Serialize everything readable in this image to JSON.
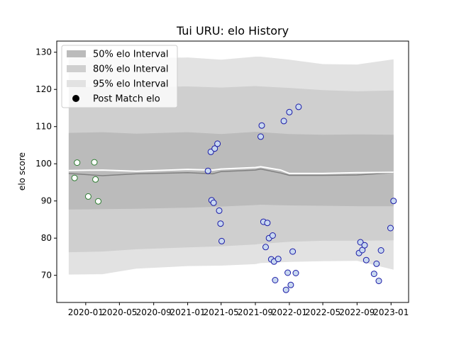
{
  "chart_data": {
    "type": "scatter",
    "title": "Tui URU: elo History",
    "xlabel": "",
    "ylabel": "elo score",
    "xlim": [
      "2019-09-19",
      "2023-03-05"
    ],
    "ylim": [
      62.7,
      133.0
    ],
    "yticks": [
      70,
      80,
      90,
      100,
      110,
      120,
      130
    ],
    "xticks": [
      "2020-01",
      "2020-05",
      "2020-09",
      "2021-01",
      "2021-05",
      "2021-09",
      "2022-01",
      "2022-05",
      "2022-09",
      "2023-01"
    ],
    "grid": false,
    "legend": {
      "position": "top-left",
      "entries": [
        "50% elo Interval",
        "80% elo Interval",
        "95% elo Interval",
        "Post Match elo"
      ]
    },
    "colors": {
      "band95": "#e2e2e2",
      "band80": "#cfcfcf",
      "band50": "#bbbbbb",
      "median_line": "#ffffff",
      "mean_line": "#808080",
      "marker_edge_green": "#2e7d32",
      "marker_edge_blue": "#1a1aa6",
      "marker_fill_blue": "#c8d8f0",
      "marker_fill_green": "#ffffff"
    },
    "bands": {
      "dates": [
        "2019-11-01",
        "2020-03-01",
        "2020-07-01",
        "2021-01-01",
        "2021-05-01",
        "2021-09-01",
        "2021-09-20",
        "2022-01-01",
        "2022-05-01",
        "2022-09-01",
        "2023-01-10"
      ],
      "p95_low": [
        70.2,
        70.3,
        71.8,
        72.5,
        72.6,
        73.0,
        73.3,
        73.6,
        73.8,
        73.9,
        71.5
      ],
      "p95_high": [
        128.5,
        128.8,
        128.3,
        128.6,
        128.0,
        128.8,
        128.8,
        128.0,
        126.8,
        126.7,
        128.1
      ],
      "p80_low": [
        76.2,
        76.4,
        77.0,
        77.5,
        77.8,
        78.3,
        78.5,
        79.0,
        79.3,
        79.3,
        79.4
      ],
      "p80_high": [
        120.5,
        120.7,
        120.6,
        120.8,
        120.5,
        120.9,
        120.8,
        120.4,
        119.8,
        119.5,
        119.7
      ],
      "p50_low": [
        87.7,
        87.8,
        87.9,
        88.2,
        88.5,
        88.9,
        89.0,
        88.8,
        88.7,
        88.6,
        88.6
      ],
      "p50_high": [
        108.3,
        108.5,
        108.1,
        108.5,
        108.0,
        108.6,
        108.5,
        108.0,
        107.8,
        107.9,
        107.8
      ]
    },
    "lines": {
      "median": {
        "dates": [
          "2019-11-01",
          "2020-03-01",
          "2020-07-01",
          "2021-01-01",
          "2021-04-01",
          "2021-05-01",
          "2021-09-01",
          "2021-09-20",
          "2021-12-01",
          "2022-01-01",
          "2022-05-01",
          "2022-09-01",
          "2023-01-10"
        ],
        "values": [
          98.2,
          98.3,
          98.0,
          98.5,
          98.3,
          98.6,
          99.0,
          99.2,
          98.3,
          97.4,
          97.4,
          97.6,
          97.7
        ]
      },
      "mean": {
        "dates": [
          "2019-11-01",
          "2020-03-01",
          "2020-07-01",
          "2021-01-01",
          "2021-04-01",
          "2021-05-01",
          "2021-09-01",
          "2021-09-20",
          "2021-12-01",
          "2022-01-01",
          "2022-05-01",
          "2022-09-01",
          "2023-01-10"
        ],
        "values": [
          97.4,
          96.8,
          97.3,
          97.6,
          97.3,
          97.9,
          98.3,
          98.6,
          97.5,
          96.9,
          96.9,
          97.0,
          97.6
        ]
      }
    },
    "points": [
      {
        "date": "2019-11-22",
        "elo": 96.2,
        "group": "green"
      },
      {
        "date": "2019-12-01",
        "elo": 100.3,
        "group": "green"
      },
      {
        "date": "2020-01-10",
        "elo": 91.2,
        "group": "green"
      },
      {
        "date": "2020-02-01",
        "elo": 100.4,
        "group": "green"
      },
      {
        "date": "2020-02-05",
        "elo": 95.8,
        "group": "green"
      },
      {
        "date": "2020-02-15",
        "elo": 89.9,
        "group": "green"
      },
      {
        "date": "2021-03-15",
        "elo": 98.1,
        "group": "blue"
      },
      {
        "date": "2021-03-25",
        "elo": 103.2,
        "group": "blue"
      },
      {
        "date": "2021-03-28",
        "elo": 90.2,
        "group": "blue"
      },
      {
        "date": "2021-04-04",
        "elo": 89.5,
        "group": "blue"
      },
      {
        "date": "2021-04-08",
        "elo": 104.1,
        "group": "blue"
      },
      {
        "date": "2021-04-18",
        "elo": 105.4,
        "group": "blue"
      },
      {
        "date": "2021-04-24",
        "elo": 87.4,
        "group": "blue"
      },
      {
        "date": "2021-04-29",
        "elo": 83.9,
        "group": "blue"
      },
      {
        "date": "2021-05-03",
        "elo": 79.2,
        "group": "blue"
      },
      {
        "date": "2021-09-20",
        "elo": 107.3,
        "group": "blue"
      },
      {
        "date": "2021-09-24",
        "elo": 110.3,
        "group": "blue"
      },
      {
        "date": "2021-09-30",
        "elo": 84.4,
        "group": "blue"
      },
      {
        "date": "2021-10-08",
        "elo": 77.6,
        "group": "blue"
      },
      {
        "date": "2021-10-14",
        "elo": 84.1,
        "group": "blue"
      },
      {
        "date": "2021-10-20",
        "elo": 80.0,
        "group": "blue"
      },
      {
        "date": "2021-10-28",
        "elo": 74.3,
        "group": "blue"
      },
      {
        "date": "2021-11-02",
        "elo": 80.7,
        "group": "blue"
      },
      {
        "date": "2021-11-07",
        "elo": 73.7,
        "group": "blue"
      },
      {
        "date": "2021-11-11",
        "elo": 68.7,
        "group": "blue"
      },
      {
        "date": "2021-11-22",
        "elo": 74.4,
        "group": "blue"
      },
      {
        "date": "2021-12-12",
        "elo": 111.5,
        "group": "blue"
      },
      {
        "date": "2021-12-20",
        "elo": 66.1,
        "group": "blue"
      },
      {
        "date": "2021-12-26",
        "elo": 70.7,
        "group": "blue"
      },
      {
        "date": "2022-01-01",
        "elo": 113.9,
        "group": "blue"
      },
      {
        "date": "2022-01-06",
        "elo": 67.4,
        "group": "blue"
      },
      {
        "date": "2022-01-13",
        "elo": 76.4,
        "group": "blue"
      },
      {
        "date": "2022-01-24",
        "elo": 70.6,
        "group": "blue"
      },
      {
        "date": "2022-02-03",
        "elo": 115.3,
        "group": "blue"
      },
      {
        "date": "2022-09-08",
        "elo": 76.0,
        "group": "blue"
      },
      {
        "date": "2022-09-13",
        "elo": 78.9,
        "group": "blue"
      },
      {
        "date": "2022-09-20",
        "elo": 76.8,
        "group": "blue"
      },
      {
        "date": "2022-09-28",
        "elo": 78.1,
        "group": "blue"
      },
      {
        "date": "2022-10-04",
        "elo": 74.1,
        "group": "blue"
      },
      {
        "date": "2022-11-01",
        "elo": 70.4,
        "group": "blue"
      },
      {
        "date": "2022-11-10",
        "elo": 73.1,
        "group": "blue"
      },
      {
        "date": "2022-11-18",
        "elo": 68.5,
        "group": "blue"
      },
      {
        "date": "2022-11-26",
        "elo": 76.7,
        "group": "blue"
      },
      {
        "date": "2022-12-30",
        "elo": 82.7,
        "group": "blue"
      },
      {
        "date": "2023-01-10",
        "elo": 90.0,
        "group": "blue"
      }
    ]
  }
}
